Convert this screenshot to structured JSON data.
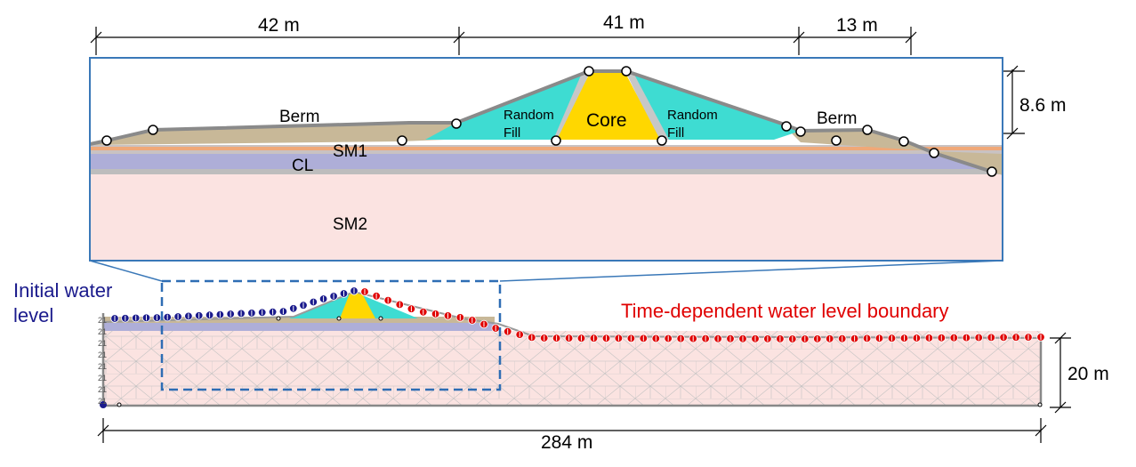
{
  "dimensions": {
    "top_left": "42 m",
    "top_mid": "41 m",
    "top_right": "13 m",
    "height": "8.6 m",
    "bottom_height": "20 m",
    "bottom_width": "284 m"
  },
  "layers": {
    "berm_left": "Berm",
    "berm_right": "Berm",
    "random_fill_left_1": "Random",
    "random_fill_left_2": "Fill",
    "random_fill_right_1": "Random",
    "random_fill_right_2": "Fill",
    "core": "Core",
    "sm1": "SM1",
    "cl": "CL",
    "sm2": "SM2"
  },
  "annotations": {
    "initial_water_1": "Initial water",
    "initial_water_2": "level",
    "time_dependent": "Time-dependent water level boundary"
  },
  "axis_ticks": [
    "21",
    "21",
    "21",
    "21",
    "21",
    "21",
    "21",
    "21"
  ],
  "colors": {
    "core": "#FFD700",
    "random_fill": "#3EDCD2",
    "sm2": "#FBE3E1",
    "cl": "#AEAED8",
    "sm1": "#F0A878",
    "berm": "#C8B898",
    "initial_water": "#1A1A8C",
    "time_dependent": "#E00000",
    "callout": "#3A78B8",
    "zoom_box": "#2E6DB4"
  }
}
